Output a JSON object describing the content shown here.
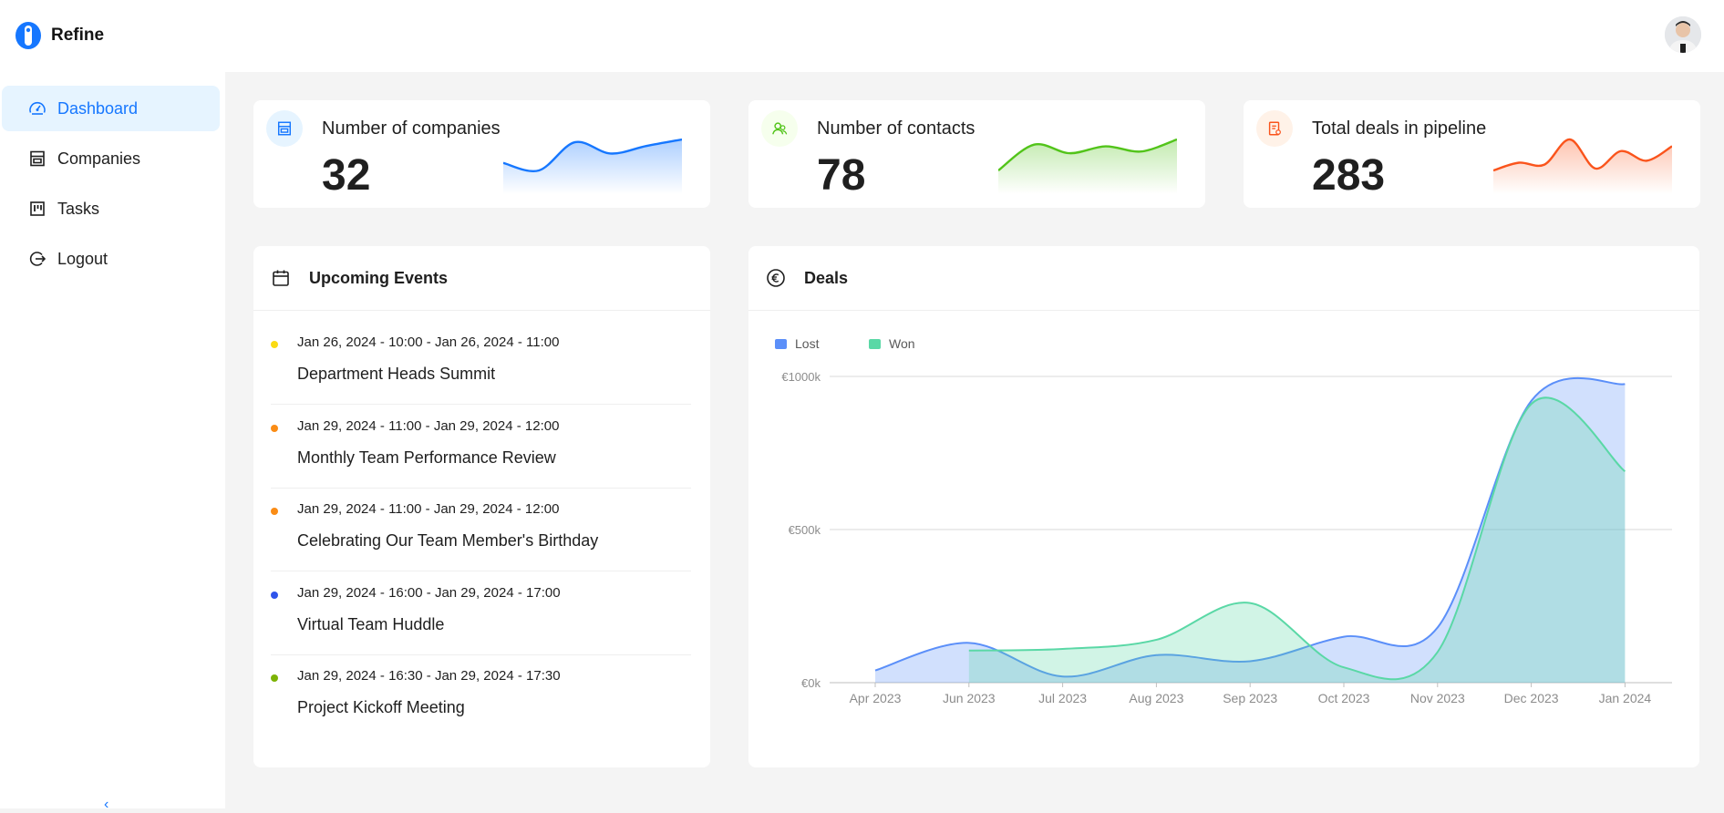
{
  "app": {
    "name": "Refine"
  },
  "user": {
    "avatar_alt": "User avatar"
  },
  "sidebar": {
    "items": [
      {
        "label": "Dashboard",
        "icon": "dashboard-icon",
        "active": true
      },
      {
        "label": "Companies",
        "icon": "shop-icon",
        "active": false
      },
      {
        "label": "Tasks",
        "icon": "project-icon",
        "active": false
      },
      {
        "label": "Logout",
        "icon": "logout-icon",
        "active": false
      }
    ],
    "collapse_glyph": "‹"
  },
  "kpis": [
    {
      "title": "Number of companies",
      "value": "32",
      "color": "#1677ff",
      "icon": "shop-icon",
      "icon_bg": "#e6f4ff",
      "trend": [
        30,
        22,
        52,
        40,
        48,
        55
      ]
    },
    {
      "title": "Number of contacts",
      "value": "78",
      "color": "#52c41a",
      "icon": "team-icon",
      "icon_bg": "#f6ffed",
      "trend": [
        10,
        40,
        30,
        38,
        32,
        46
      ]
    },
    {
      "title": "Total deals in pipeline",
      "value": "283",
      "color": "#fa541c",
      "icon": "audit-icon",
      "icon_bg": "#fff2e8",
      "trend": [
        20,
        28,
        26,
        52,
        22,
        40,
        30,
        45
      ]
    }
  ],
  "events": {
    "title": "Upcoming Events",
    "items": [
      {
        "date": "Jan 26, 2024 - 10:00 - Jan 26, 2024 - 11:00",
        "title": "Department Heads Summit",
        "color": "#fadb14"
      },
      {
        "date": "Jan 29, 2024 - 11:00 - Jan 29, 2024 - 12:00",
        "title": "Monthly Team Performance Review",
        "color": "#fa8c16"
      },
      {
        "date": "Jan 29, 2024 - 11:00 - Jan 29, 2024 - 12:00",
        "title": "Celebrating Our Team Member's Birthday",
        "color": "#fa8c16"
      },
      {
        "date": "Jan 29, 2024 - 16:00 - Jan 29, 2024 - 17:00",
        "title": "Virtual Team Huddle",
        "color": "#2f54eb"
      },
      {
        "date": "Jan 29, 2024 - 16:30 - Jan 29, 2024 - 17:30",
        "title": "Project Kickoff Meeting",
        "color": "#7cb305"
      }
    ]
  },
  "deals": {
    "title": "Deals",
    "currency_icon": "euro-circle-icon"
  },
  "chart_data": {
    "type": "area",
    "title": "Deals",
    "categories": [
      "Apr 2023",
      "Jun 2023",
      "Jul 2023",
      "Aug 2023",
      "Sep 2023",
      "Oct 2023",
      "Nov 2023",
      "Dec 2023",
      "Jan 2024"
    ],
    "y_ticks": [
      "€0k",
      "€500k",
      "€1000k"
    ],
    "ylim": [
      0,
      1000
    ],
    "legend_position": "top-left",
    "series": [
      {
        "name": "Lost",
        "color": "#5b8ff9",
        "fill": "#5b8ff9",
        "values": [
          40,
          130,
          20,
          90,
          70,
          150,
          180,
          920,
          975
        ],
        "start_index": 0
      },
      {
        "name": "Won",
        "color": "#5ad8a6",
        "fill": "#5ad8a6",
        "values": [
          null,
          105,
          110,
          140,
          260,
          50,
          100,
          910,
          690
        ],
        "start_index": 1
      }
    ]
  }
}
